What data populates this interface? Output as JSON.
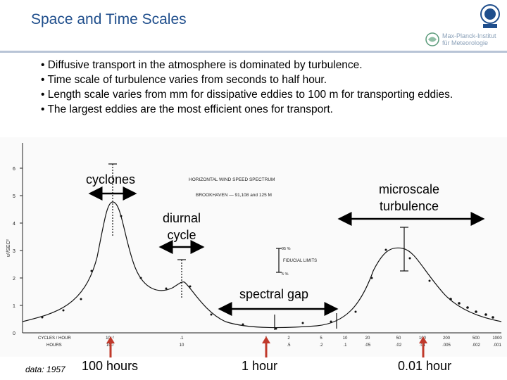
{
  "header": {
    "title": "Space and Time Scales",
    "institute_line1": "Max-Planck-Institut",
    "institute_line2": "für Meteorologie"
  },
  "bullets": [
    "• Diffusive transport in the atmosphere is dominated by turbulence.",
    "• Time scale of turbulence varies from seconds to half hour.",
    "• Length scale varies from mm for dissipative eddies to 100 m for transporting eddies.",
    "• The largest eddies are the most efficient ones for transport."
  ],
  "figure": {
    "inner_title": "HORIZONTAL WIND SPEED SPECTRUM",
    "inner_subtitle": "BROOKHAVEN — 91,108 and 125 M",
    "ylabel": "u²/SEC²",
    "y_ticks": [
      "6",
      "5",
      "4",
      "3",
      "2",
      "1",
      "0"
    ],
    "x_cycles_label": "CYCLES / HOUR",
    "x_hours_label": "HOURS",
    "x_ticks_cycles": [
      ".001",
      "",
      "10⁻²",
      "",
      ".1",
      "",
      "1",
      "2",
      "5",
      "10",
      "20",
      "50",
      "100",
      "200",
      "500",
      "1000"
    ],
    "x_ticks_hours": [
      "1000",
      "",
      "100",
      "",
      "10",
      "",
      "1",
      ".5",
      ".2",
      ".1",
      ".05",
      ".02",
      ".01",
      ".005",
      ".002",
      ".001"
    ],
    "fiducial_top": "95 %",
    "fiducial_label": "FIDUCIAL LIMITS",
    "fiducial_bottom": "5 %",
    "annotations": {
      "cyclones": "cyclones",
      "diurnal_line1": "diurnal",
      "diurnal_line2": "cycle",
      "microscale_line1": "microscale",
      "microscale_line2": "turbulence",
      "spectral_gap": "spectral gap"
    }
  },
  "bottom_labels": {
    "data": "data: 1957",
    "h100": "100 hours",
    "h1": "1 hour",
    "h001": "0.01 hour"
  },
  "colors": {
    "title": "#1f4e8c",
    "arrow": "#c0392b",
    "rule": "#b8c4d6"
  }
}
